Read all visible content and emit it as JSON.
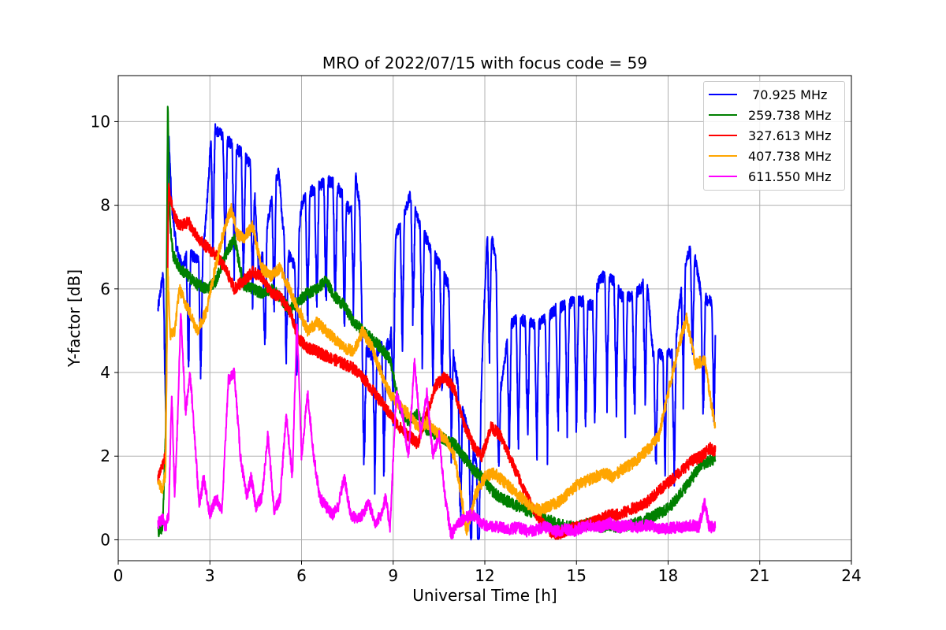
{
  "chart_data": {
    "type": "line",
    "title": "MRO of 2022/07/15 with focus code = 59",
    "xlabel": "Universal Time [h]",
    "ylabel": "Y-factor [dB]",
    "xlim": [
      0,
      24
    ],
    "ylim": [
      -0.5,
      11.1
    ],
    "xticks": [
      0,
      3,
      6,
      9,
      12,
      15,
      18,
      21,
      24
    ],
    "yticks": [
      0,
      2,
      4,
      6,
      8,
      10
    ],
    "grid": true,
    "legend_position": "top-right",
    "series": [
      {
        "name": " 70.925 MHz",
        "color": "#0000ff",
        "dip_depth": 2.3,
        "dip_width": 0.07,
        "dip_times": [
          1.55,
          2.3,
          2.7,
          3.1,
          3.5,
          3.8,
          4.1,
          4.4,
          4.8,
          5.1,
          5.5,
          5.85,
          6.2,
          6.5,
          6.8,
          7.1,
          7.4,
          7.7,
          8.05,
          8.4,
          8.7,
          9.0,
          9.3,
          9.65,
          9.95,
          10.3,
          10.6,
          10.9,
          11.2,
          11.55,
          11.8,
          12.15,
          12.45,
          12.8,
          13.1,
          13.4,
          13.7,
          14.05,
          14.4,
          14.7,
          15.0,
          15.3,
          15.6,
          16.0,
          16.3,
          16.6,
          16.9,
          17.25,
          17.6,
          17.9,
          18.2,
          18.5,
          18.8,
          19.15,
          19.5
        ],
        "x": [
          1.3,
          1.45,
          1.55,
          1.65,
          1.75,
          1.9,
          2.1,
          2.3,
          2.55,
          2.8,
          2.95,
          3.05,
          3.2,
          3.5,
          3.8,
          4.1,
          4.3,
          4.45,
          4.6,
          4.9,
          5.1,
          5.25,
          5.4,
          5.6,
          5.8,
          6.0,
          6.2,
          6.5,
          6.8,
          7.1,
          7.4,
          7.6,
          7.75,
          7.9,
          8.0,
          8.3,
          8.6,
          8.9,
          9.1,
          9.3,
          9.55,
          9.7,
          9.9,
          10.2,
          10.5,
          10.8,
          11.0,
          11.3,
          11.6,
          11.8,
          11.95,
          12.1,
          12.35,
          12.5,
          12.8,
          13.1,
          13.4,
          13.7,
          14.0,
          14.3,
          14.6,
          14.9,
          15.2,
          15.5,
          15.8,
          16.2,
          16.5,
          16.8,
          17.1,
          17.3,
          17.5,
          17.8,
          18.0,
          18.2,
          18.5,
          18.65,
          18.8,
          19.1,
          19.4,
          19.55
        ],
        "y": [
          5.5,
          6.3,
          5.8,
          9.7,
          8.0,
          7.0,
          6.5,
          6.9,
          6.7,
          7.0,
          8.5,
          9.9,
          9.8,
          9.6,
          9.4,
          9.2,
          9.0,
          8.6,
          6.3,
          7.6,
          8.5,
          8.8,
          7.4,
          6.8,
          6.5,
          8.0,
          8.3,
          8.4,
          8.6,
          8.5,
          8.2,
          7.8,
          8.8,
          8.0,
          4.6,
          4.4,
          4.6,
          4.7,
          7.3,
          7.7,
          8.2,
          7.9,
          7.5,
          7.0,
          6.6,
          6.1,
          4.2,
          3.0,
          2.2,
          1.5,
          5.1,
          7.6,
          6.8,
          3.5,
          5.1,
          5.3,
          5.2,
          5.1,
          5.3,
          5.5,
          5.6,
          5.7,
          5.7,
          5.6,
          6.3,
          6.2,
          5.8,
          5.8,
          6.0,
          6.3,
          4.5,
          4.4,
          4.5,
          4.4,
          6.5,
          6.8,
          7.1,
          5.8,
          5.7,
          5.8
        ]
      },
      {
        "name": "259.738 MHz",
        "color": "#008000",
        "x": [
          1.3,
          1.45,
          1.55,
          1.62,
          1.7,
          1.8,
          2.0,
          2.3,
          2.6,
          2.9,
          3.2,
          3.5,
          3.8,
          4.1,
          4.4,
          4.7,
          5.0,
          5.3,
          5.6,
          5.9,
          6.2,
          6.5,
          6.8,
          7.1,
          7.4,
          7.7,
          8.0,
          8.3,
          8.6,
          8.9,
          9.2,
          9.5,
          9.8,
          10.1,
          10.4,
          10.7,
          11.0,
          11.3,
          11.6,
          11.9,
          12.2,
          12.5,
          12.8,
          13.1,
          13.4,
          13.7,
          14.0,
          14.3,
          14.6,
          14.9,
          15.2,
          15.5,
          15.8,
          16.1,
          16.4,
          16.7,
          17.0,
          17.3,
          17.6,
          17.9,
          18.2,
          18.5,
          18.8,
          19.1,
          19.4,
          19.55
        ],
        "y": [
          0.2,
          0.3,
          2.5,
          10.5,
          7.5,
          6.8,
          6.5,
          6.3,
          6.1,
          6.0,
          6.2,
          6.8,
          7.2,
          6.1,
          6.0,
          5.9,
          6.0,
          5.8,
          5.5,
          5.7,
          5.9,
          6.0,
          6.2,
          5.8,
          5.6,
          5.2,
          5.0,
          4.8,
          4.6,
          4.3,
          3.2,
          2.8,
          3.0,
          2.6,
          2.5,
          2.4,
          2.3,
          2.0,
          1.7,
          1.5,
          1.2,
          1.0,
          0.9,
          0.8,
          0.7,
          0.6,
          0.5,
          0.4,
          0.35,
          0.3,
          0.35,
          0.4,
          0.3,
          0.35,
          0.3,
          0.35,
          0.4,
          0.5,
          0.6,
          0.7,
          0.9,
          1.2,
          1.5,
          1.8,
          1.9,
          1.9
        ]
      },
      {
        "name": "327.613 MHz",
        "color": "#ff0000",
        "x": [
          1.3,
          1.45,
          1.55,
          1.65,
          1.8,
          2.0,
          2.3,
          2.6,
          2.9,
          3.2,
          3.5,
          3.8,
          4.1,
          4.4,
          4.7,
          5.0,
          5.3,
          5.6,
          5.9,
          6.2,
          6.5,
          6.8,
          7.1,
          7.4,
          7.7,
          8.0,
          8.3,
          8.6,
          8.9,
          9.2,
          9.5,
          9.8,
          10.1,
          10.4,
          10.7,
          11.0,
          11.3,
          11.6,
          11.9,
          12.2,
          12.5,
          12.8,
          13.1,
          13.4,
          13.7,
          14.0,
          14.3,
          14.6,
          14.9,
          15.2,
          15.5,
          15.8,
          16.1,
          16.4,
          16.7,
          17.0,
          17.3,
          17.6,
          17.9,
          18.2,
          18.5,
          18.8,
          19.1,
          19.4,
          19.55
        ],
        "y": [
          1.5,
          1.8,
          2.0,
          8.4,
          7.8,
          7.5,
          7.6,
          7.2,
          7.0,
          6.8,
          6.5,
          6.0,
          6.2,
          6.4,
          6.3,
          5.9,
          5.8,
          5.5,
          4.8,
          4.6,
          4.5,
          4.4,
          4.3,
          4.2,
          4.1,
          3.9,
          3.6,
          3.3,
          3.0,
          2.7,
          2.5,
          2.3,
          3.0,
          3.7,
          3.9,
          3.6,
          2.8,
          2.3,
          2.0,
          2.7,
          2.5,
          2.0,
          1.5,
          1.0,
          0.6,
          0.3,
          0.1,
          0.2,
          0.3,
          0.35,
          0.4,
          0.5,
          0.6,
          0.6,
          0.7,
          0.8,
          0.9,
          1.1,
          1.3,
          1.5,
          1.7,
          1.9,
          2.0,
          2.2,
          2.1
        ]
      },
      {
        "name": "407.738 MHz",
        "color": "#ffa500",
        "x": [
          1.3,
          1.45,
          1.55,
          1.62,
          1.7,
          1.85,
          2.0,
          2.3,
          2.6,
          2.9,
          3.2,
          3.5,
          3.7,
          3.9,
          4.1,
          4.4,
          4.7,
          5.0,
          5.3,
          5.6,
          5.9,
          6.2,
          6.5,
          6.8,
          7.1,
          7.4,
          7.7,
          8.0,
          8.3,
          8.6,
          8.9,
          9.2,
          9.5,
          9.8,
          10.1,
          10.4,
          10.7,
          11.0,
          11.2,
          11.4,
          11.7,
          12.0,
          12.3,
          12.6,
          12.9,
          13.2,
          13.5,
          13.8,
          14.1,
          14.4,
          14.7,
          15.0,
          15.3,
          15.6,
          15.9,
          16.2,
          16.5,
          16.8,
          17.1,
          17.4,
          17.7,
          18.0,
          18.3,
          18.6,
          18.9,
          19.2,
          19.4,
          19.55
        ],
        "y": [
          1.4,
          1.2,
          1.6,
          6.5,
          4.9,
          5.0,
          6.0,
          5.5,
          5.0,
          5.5,
          6.6,
          7.5,
          7.9,
          7.3,
          7.2,
          7.5,
          6.5,
          6.3,
          6.5,
          6.0,
          5.5,
          5.0,
          5.2,
          5.0,
          4.8,
          4.6,
          4.5,
          5.0,
          4.6,
          4.0,
          3.5,
          3.2,
          3.0,
          2.7,
          2.8,
          2.6,
          2.4,
          2.0,
          1.2,
          0.2,
          1.1,
          1.5,
          1.6,
          1.4,
          1.2,
          1.0,
          0.8,
          0.7,
          0.8,
          0.9,
          1.1,
          1.3,
          1.4,
          1.5,
          1.6,
          1.5,
          1.7,
          1.8,
          2.0,
          2.2,
          2.5,
          3.5,
          4.5,
          5.3,
          4.2,
          4.3,
          3.3,
          2.7
        ]
      },
      {
        "name": "611.550 MHz",
        "color": "#ff00ff",
        "x": [
          1.3,
          1.45,
          1.55,
          1.65,
          1.75,
          1.85,
          1.95,
          2.05,
          2.2,
          2.35,
          2.5,
          2.65,
          2.8,
          3.0,
          3.2,
          3.4,
          3.6,
          3.8,
          4.0,
          4.2,
          4.35,
          4.5,
          4.7,
          4.9,
          5.1,
          5.3,
          5.5,
          5.7,
          5.85,
          6.0,
          6.2,
          6.4,
          6.6,
          6.8,
          7.0,
          7.2,
          7.4,
          7.6,
          7.8,
          8.0,
          8.2,
          8.4,
          8.6,
          8.75,
          8.9,
          9.1,
          9.3,
          9.5,
          9.7,
          9.9,
          10.1,
          10.3,
          10.5,
          10.7,
          10.9,
          11.1,
          11.3,
          11.6,
          11.9,
          12.2,
          12.5,
          12.8,
          13.1,
          13.4,
          13.7,
          14.0,
          14.3,
          14.6,
          14.9,
          15.2,
          15.5,
          15.8,
          16.1,
          16.4,
          16.7,
          17.0,
          17.3,
          17.6,
          17.9,
          18.2,
          18.5,
          18.8,
          19.0,
          19.2,
          19.35,
          19.55
        ],
        "y": [
          0.4,
          0.5,
          0.3,
          0.6,
          3.5,
          1.0,
          3.0,
          5.5,
          3.0,
          4.0,
          2.5,
          0.8,
          1.5,
          0.6,
          1.0,
          0.7,
          3.8,
          4.0,
          2.0,
          1.0,
          1.5,
          0.8,
          1.0,
          2.5,
          0.7,
          1.0,
          3.0,
          1.5,
          5.3,
          2.0,
          3.5,
          2.0,
          1.0,
          0.8,
          0.6,
          0.8,
          1.5,
          0.6,
          0.5,
          0.6,
          0.9,
          0.4,
          0.6,
          1.0,
          0.3,
          3.5,
          3.0,
          2.0,
          4.3,
          2.5,
          3.5,
          2.0,
          2.5,
          1.0,
          0.1,
          0.4,
          0.5,
          0.6,
          0.4,
          0.3,
          0.3,
          0.25,
          0.3,
          0.2,
          0.25,
          0.3,
          0.2,
          0.25,
          0.2,
          0.3,
          0.35,
          0.3,
          0.4,
          0.3,
          0.35,
          0.3,
          0.35,
          0.3,
          0.25,
          0.3,
          0.3,
          0.35,
          0.3,
          0.9,
          0.3,
          0.3
        ]
      }
    ]
  }
}
